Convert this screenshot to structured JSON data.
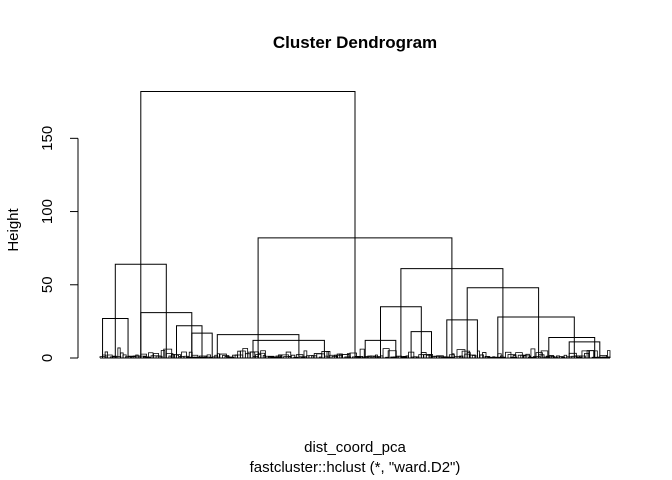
{
  "chart_data": {
    "type": "dendrogram",
    "title": "Cluster Dendrogram",
    "xlabel": "dist_coord_pca",
    "sub": "fastcluster::hclust (*, \"ward.D2\")",
    "ylabel": "Height",
    "yticks": [
      0,
      50,
      100,
      150
    ],
    "ylim": [
      0,
      183
    ],
    "leaf_count": 600,
    "merges": [
      {
        "left": 0.08,
        "right": 0.5,
        "height": 182
      },
      {
        "left": 0.03,
        "right": 0.13,
        "height": 64
      },
      {
        "left": 0.31,
        "right": 0.69,
        "height": 82
      },
      {
        "left": 0.23,
        "right": 0.39,
        "height": 16
      },
      {
        "left": 0.59,
        "right": 0.79,
        "height": 61
      },
      {
        "left": 0.55,
        "right": 0.63,
        "height": 35
      },
      {
        "left": 0.72,
        "right": 0.86,
        "height": 48
      },
      {
        "left": 0.78,
        "right": 0.93,
        "height": 28
      },
      {
        "left": 0.005,
        "right": 0.055,
        "height": 27
      },
      {
        "left": 0.08,
        "right": 0.18,
        "height": 31
      },
      {
        "left": 0.15,
        "right": 0.2,
        "height": 22
      },
      {
        "left": 0.18,
        "right": 0.22,
        "height": 17
      },
      {
        "left": 0.52,
        "right": 0.58,
        "height": 12
      },
      {
        "left": 0.61,
        "right": 0.65,
        "height": 18
      },
      {
        "left": 0.68,
        "right": 0.74,
        "height": 26
      },
      {
        "left": 0.88,
        "right": 0.97,
        "height": 14
      },
      {
        "left": 0.92,
        "right": 0.98,
        "height": 11
      },
      {
        "left": 0.3,
        "right": 0.44,
        "height": 12
      }
    ]
  }
}
